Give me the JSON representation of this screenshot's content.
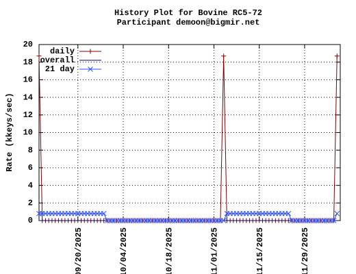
{
  "chart_data": {
    "type": "line",
    "title": "History Plot for Bovine RC5-72",
    "subtitle": "Participant demoon@bigmir.net",
    "y_label": "Rate (kkeys/sec)",
    "x": [
      "2025-09-08",
      "2025-09-09",
      "2025-09-10",
      "2025-09-11",
      "2025-09-12",
      "2025-09-13",
      "2025-09-14",
      "2025-09-15",
      "2025-09-16",
      "2025-09-17",
      "2025-09-18",
      "2025-09-19",
      "2025-09-20",
      "2025-09-21",
      "2025-09-22",
      "2025-09-23",
      "2025-09-24",
      "2025-09-25",
      "2025-09-26",
      "2025-09-27",
      "2025-09-28",
      "2025-09-29",
      "2025-09-30",
      "2025-10-01",
      "2025-10-02",
      "2025-10-03",
      "2025-10-04",
      "2025-10-05",
      "2025-10-06",
      "2025-10-07",
      "2025-10-08",
      "2025-10-09",
      "2025-10-10",
      "2025-10-11",
      "2025-10-12",
      "2025-10-13",
      "2025-10-14",
      "2025-10-15",
      "2025-10-16",
      "2025-10-17",
      "2025-10-18",
      "2025-10-19",
      "2025-10-20",
      "2025-10-21",
      "2025-10-22",
      "2025-10-23",
      "2025-10-24",
      "2025-10-25",
      "2025-10-26",
      "2025-10-27",
      "2025-10-28",
      "2025-10-29",
      "2025-10-30",
      "2025-10-31",
      "2025-11-01",
      "2025-11-02",
      "2025-11-03",
      "2025-11-04",
      "2025-11-05",
      "2025-11-06",
      "2025-11-07",
      "2025-11-08",
      "2025-11-09",
      "2025-11-10",
      "2025-11-11",
      "2025-11-12",
      "2025-11-13",
      "2025-11-14",
      "2025-11-15",
      "2025-11-16",
      "2025-11-17",
      "2025-11-18",
      "2025-11-19",
      "2025-11-20",
      "2025-11-21",
      "2025-11-22",
      "2025-11-23",
      "2025-11-24",
      "2025-11-25",
      "2025-11-26",
      "2025-11-27",
      "2025-11-28",
      "2025-11-29",
      "2025-11-30",
      "2025-12-01",
      "2025-12-02",
      "2025-12-03",
      "2025-12-04",
      "2025-12-05",
      "2025-12-06",
      "2025-12-07",
      "2025-12-08",
      "2025-12-09"
    ],
    "series": [
      {
        "name": "daily",
        "color": "#800000",
        "marker": "+",
        "values": [
          18.7,
          0,
          0,
          0,
          0,
          0,
          0,
          0,
          0,
          0,
          0,
          0,
          0,
          0,
          0,
          0,
          0,
          0,
          0,
          0,
          0,
          0,
          0,
          0,
          0,
          0,
          0,
          0,
          0,
          0,
          0,
          0,
          0,
          0,
          0,
          0,
          0,
          0,
          0,
          0,
          0,
          0,
          0,
          0,
          0,
          0,
          0,
          0,
          0,
          0,
          0,
          0,
          0,
          0,
          0,
          0,
          0,
          18.7,
          0,
          0,
          0,
          0,
          0,
          0,
          0,
          0,
          0,
          0,
          0,
          0,
          0,
          0,
          0,
          0,
          0,
          0,
          0,
          0,
          0,
          0,
          0,
          0,
          0,
          0,
          0,
          0,
          0,
          0,
          0,
          0,
          0,
          0,
          18.7
        ]
      },
      {
        "name": "overall",
        "color": "#000080",
        "values": [
          0,
          0,
          0,
          0,
          0,
          0,
          0,
          0,
          0,
          0,
          0,
          0,
          0,
          0,
          0,
          0,
          0,
          0,
          0,
          0,
          0,
          0,
          0,
          0,
          0,
          0,
          0,
          0,
          0,
          0,
          0,
          0,
          0,
          0,
          0,
          0,
          0,
          0,
          0,
          0,
          0,
          0,
          0,
          0,
          0,
          0,
          0,
          0,
          0,
          0,
          0,
          0,
          0,
          0,
          0,
          0,
          0,
          0,
          0,
          0,
          0,
          0,
          0,
          0,
          0,
          0,
          0,
          0,
          0,
          0,
          0,
          0,
          0,
          0,
          0,
          0,
          0,
          0,
          0,
          0,
          0,
          0,
          0,
          0,
          0,
          0,
          0,
          0,
          0,
          0,
          0,
          0,
          0
        ]
      },
      {
        "name": "21 day",
        "color": "#3050ff",
        "marker": "x",
        "values": [
          0.8,
          0.8,
          0.8,
          0.8,
          0.8,
          0.8,
          0.8,
          0.8,
          0.8,
          0.8,
          0.8,
          0.8,
          0.8,
          0.8,
          0.8,
          0.8,
          0.8,
          0.8,
          0.8,
          0.8,
          0.8,
          0,
          0,
          0,
          0,
          0,
          0,
          0,
          0,
          0,
          0,
          0,
          0,
          0,
          0,
          0,
          0,
          0,
          0,
          0,
          0,
          0,
          0,
          0,
          0,
          0,
          0,
          0,
          0,
          0,
          0,
          0,
          0,
          0,
          0,
          0,
          0,
          0,
          0.8,
          0.8,
          0.8,
          0.8,
          0.8,
          0.8,
          0.8,
          0.8,
          0.8,
          0.8,
          0.8,
          0.8,
          0.8,
          0.8,
          0.8,
          0.8,
          0.8,
          0.8,
          0.8,
          0.8,
          0,
          0,
          0,
          0,
          0,
          0,
          0,
          0,
          0,
          0,
          0,
          0,
          0,
          0,
          0.8
        ]
      }
    ],
    "xlim": [
      "2025-09-08",
      "2025-12-10"
    ],
    "xticks": [
      {
        "value": "2025-09-20",
        "label": "09/20/2025"
      },
      {
        "value": "2025-10-04",
        "label": "10/04/2025"
      },
      {
        "value": "2025-10-18",
        "label": "10/18/2025"
      },
      {
        "value": "2025-11-01",
        "label": "11/01/2025"
      },
      {
        "value": "2025-11-15",
        "label": "11/15/2025"
      },
      {
        "value": "2025-11-29",
        "label": "11/29/2025"
      }
    ],
    "ylim": [
      0,
      20
    ],
    "yticks": [
      0,
      2,
      4,
      6,
      8,
      10,
      12,
      14,
      16,
      18,
      20
    ],
    "grid": true,
    "legend": "top-left"
  }
}
